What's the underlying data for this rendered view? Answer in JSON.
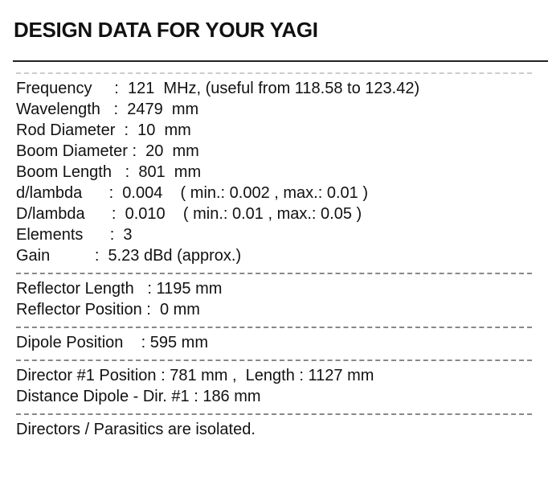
{
  "header": {
    "title": "DESIGN DATA FOR YOUR YAGI"
  },
  "sections": [
    {
      "lines": [
        "Frequency     :  121  MHz, (useful from 118.58 to 123.42)",
        "Wavelength   :  2479  mm",
        "Rod Diameter  :  10  mm",
        "Boom Diameter :  20  mm",
        "Boom Length   :  801  mm",
        "d/lambda      :  0.004    ( min.: 0.002 , max.: 0.01 )",
        "D/lambda      :  0.010    ( min.: 0.01 , max.: 0.05 )",
        "Elements      :  3",
        "Gain          :  5.23 dBd (approx.)"
      ]
    },
    {
      "lines": [
        "Reflector Length   : 1195 mm",
        "Reflector Position :  0 mm"
      ]
    },
    {
      "lines": [
        "Dipole Position    : 595 mm"
      ]
    },
    {
      "lines": [
        "Director #1 Position : 781 mm ,  Length : 1127 mm",
        "Distance Dipole - Dir. #1 : 186 mm"
      ]
    },
    {
      "lines": [
        "Directors / Parasitics are isolated."
      ]
    }
  ]
}
